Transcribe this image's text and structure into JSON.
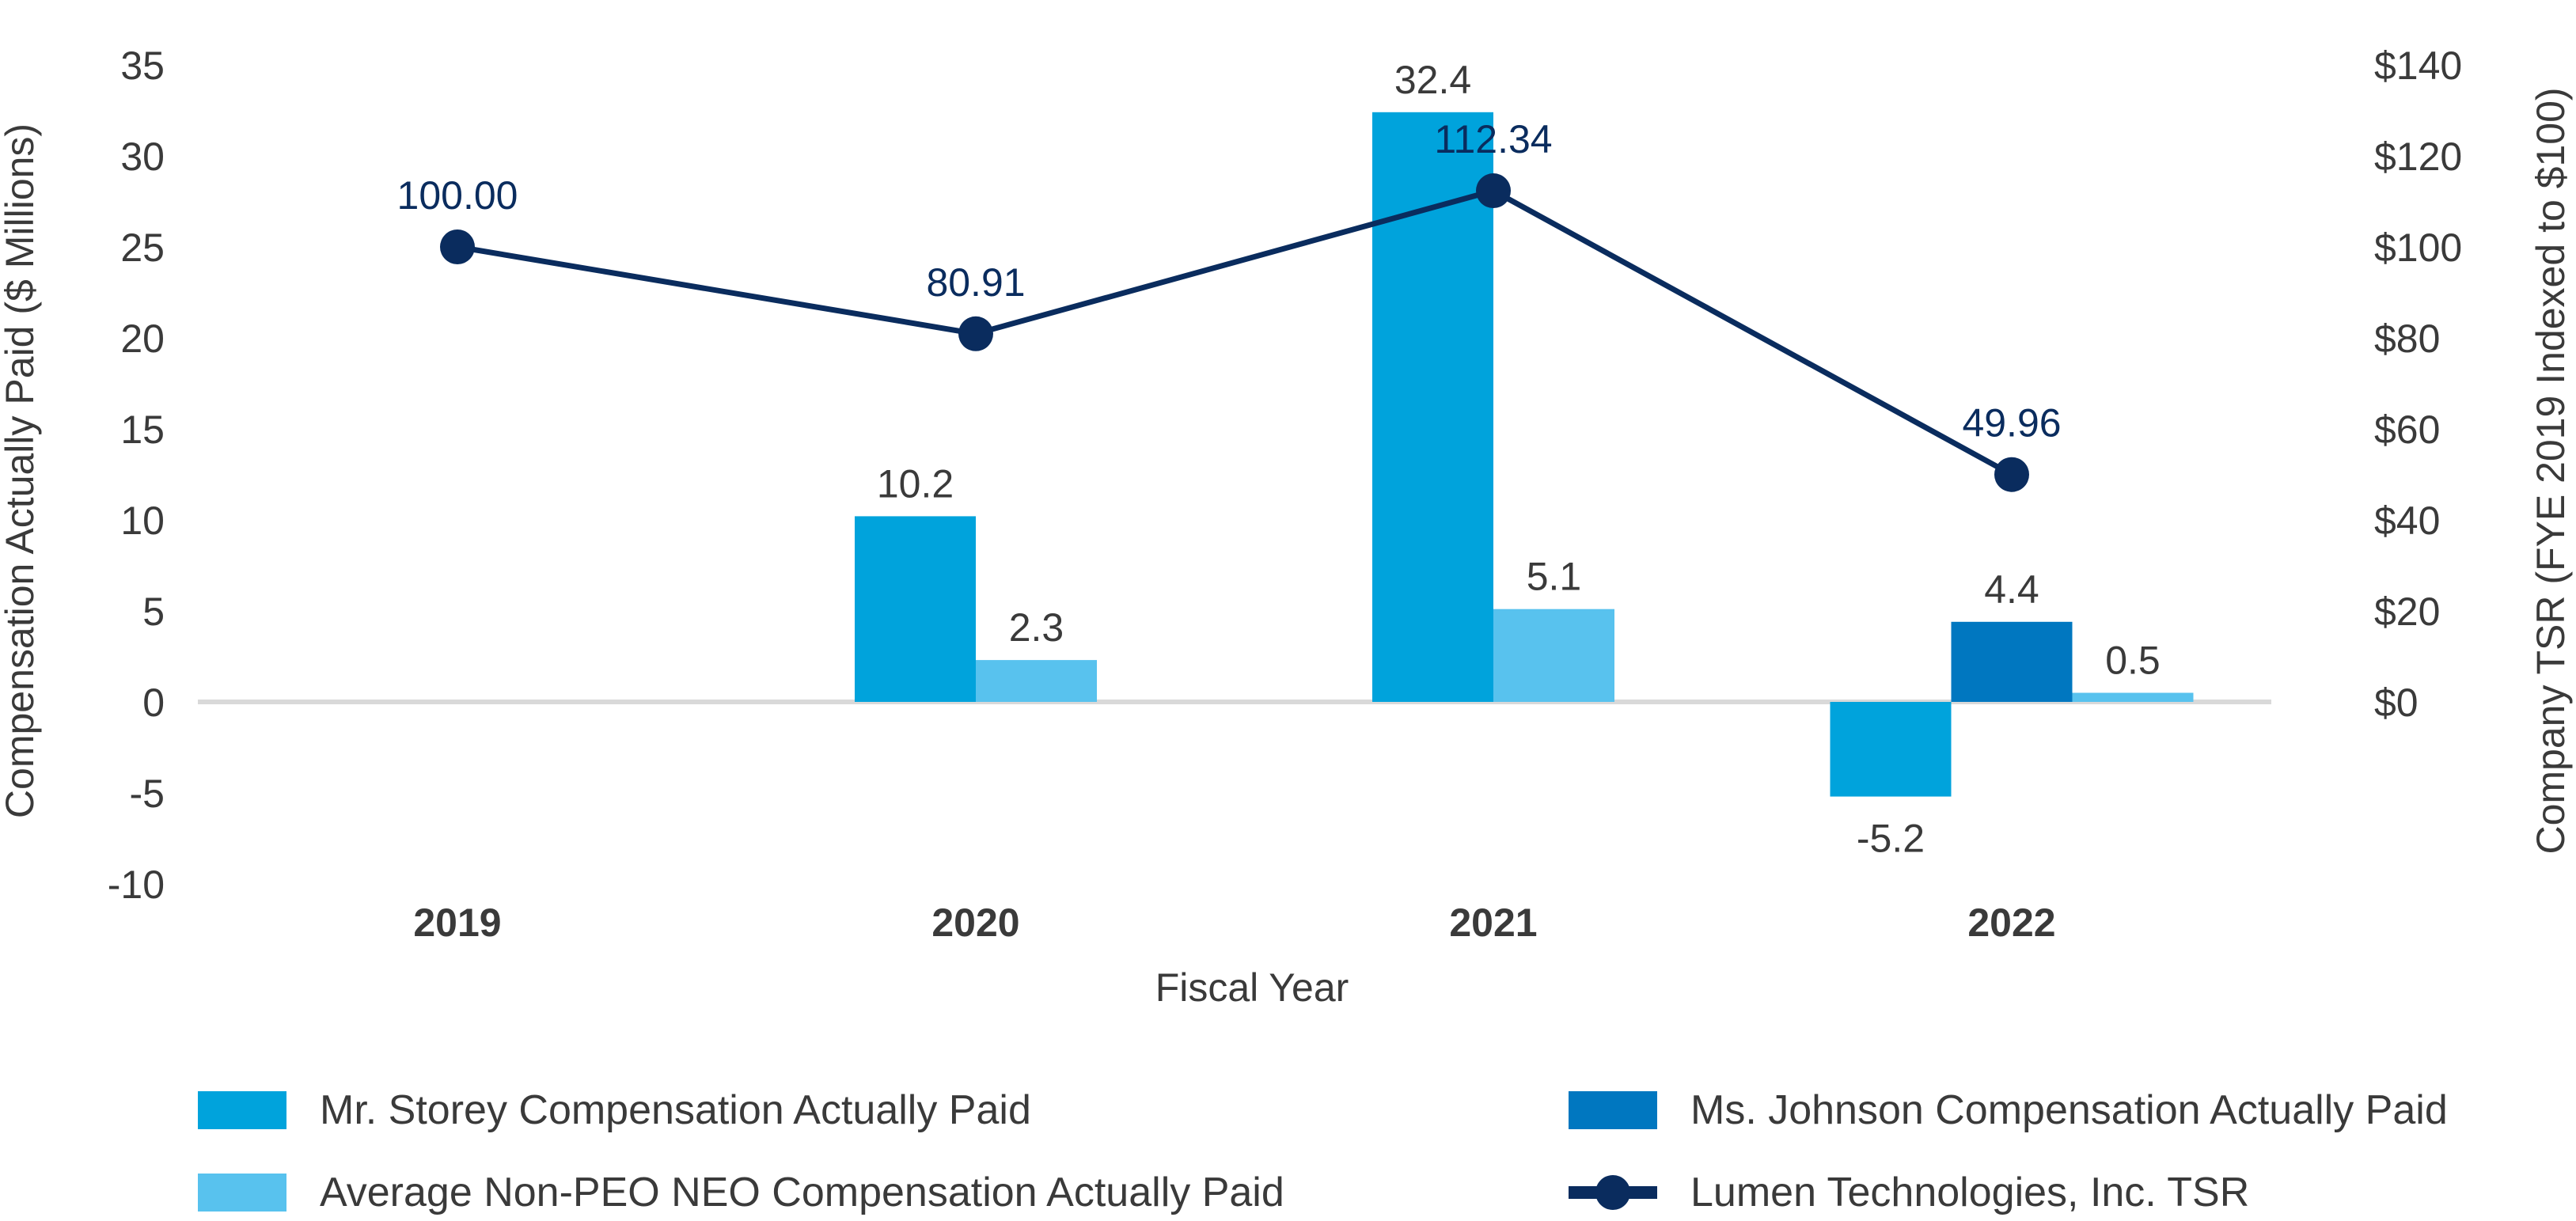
{
  "chart_data": {
    "type": "bar",
    "title": "",
    "categories": [
      "2019",
      "2020",
      "2021",
      "2022"
    ],
    "xlabel": "Fiscal Year",
    "ylabel": "Compensation Actually Paid ($ Millions)",
    "ylabel_right": "Company TSR (FYE 2019 Indexed to $100)",
    "ylim": [
      -10,
      35
    ],
    "yticks": [
      "35",
      "30",
      "25",
      "20",
      "15",
      "10",
      "5",
      "0",
      "-5",
      "-10"
    ],
    "ylim_right": [
      0,
      140
    ],
    "yticks_right": [
      "$140",
      "$120",
      "$100",
      "$80",
      "$60",
      "$40",
      "$20",
      "$0"
    ],
    "series": [
      {
        "name": "Mr. Storey Compensation Actually Paid",
        "kind": "bar",
        "color": "#00a3dc",
        "values": [
          null,
          10.2,
          32.4,
          -5.2
        ],
        "labels": [
          "",
          "10.2",
          "32.4",
          "-5.2"
        ]
      },
      {
        "name": "Ms. Johnson Compensation Actually Paid",
        "kind": "bar",
        "color": "#0077c0",
        "values": [
          null,
          null,
          null,
          4.4
        ],
        "labels": [
          "",
          "",
          "",
          "4.4"
        ]
      },
      {
        "name": "Average Non-PEO NEO Compensation Actually Paid",
        "kind": "bar",
        "color": "#58c2ee",
        "values": [
          null,
          2.3,
          5.1,
          0.5
        ],
        "labels": [
          "",
          "2.3",
          "5.1",
          "0.5"
        ]
      },
      {
        "name": "Lumen Technologies, Inc. TSR",
        "kind": "line",
        "axis": "right",
        "color": "#0a2c5e",
        "values": [
          100.0,
          80.91,
          112.34,
          49.96
        ],
        "labels": [
          "100.00",
          "80.91",
          "112.34",
          "49.96"
        ]
      }
    ],
    "legend_position": "bottom"
  }
}
